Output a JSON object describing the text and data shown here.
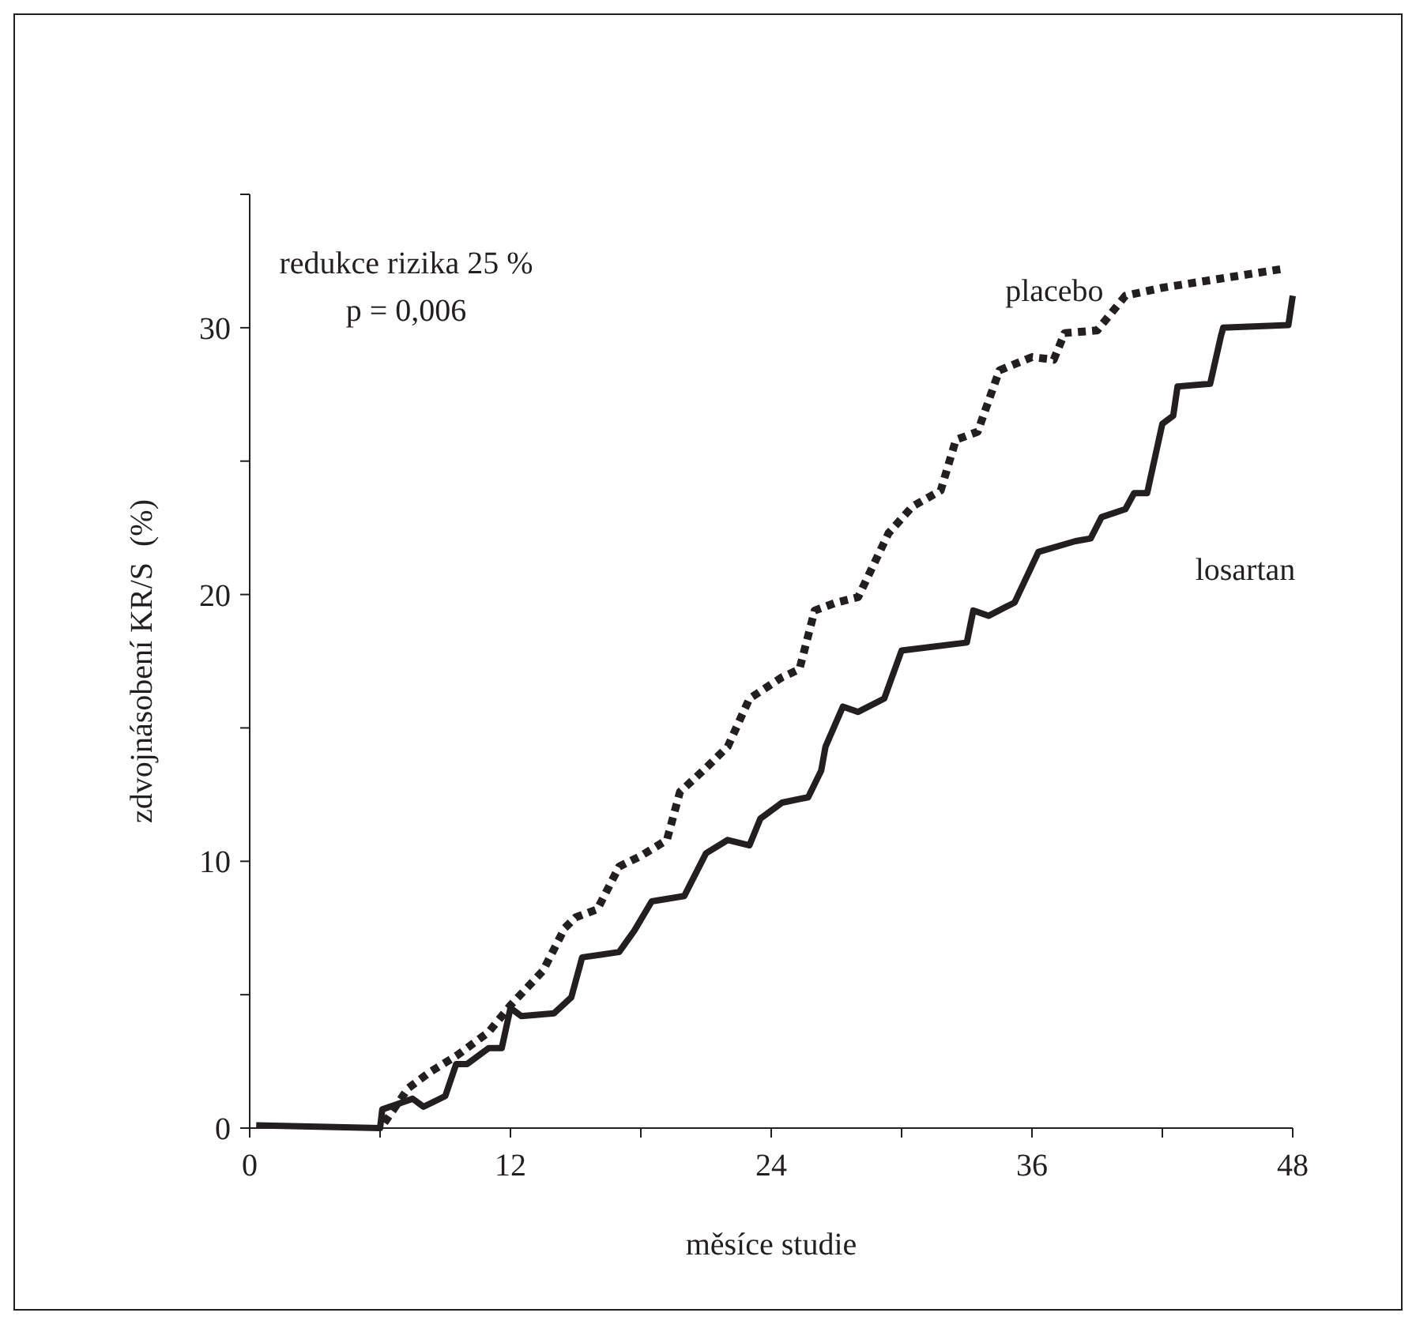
{
  "chart_data": {
    "type": "line",
    "xlabel": "měsíce studie",
    "ylabel": "zdvojnásobení KR/S  (%)",
    "xlim": [
      0,
      48
    ],
    "ylim": [
      0,
      35
    ],
    "xticks": [
      0,
      {
        "value": 6,
        "label": null
      },
      12,
      {
        "value": 18,
        "label": null
      },
      24,
      {
        "value": 30,
        "label": null
      },
      36,
      {
        "value": 42,
        "label": null
      },
      48
    ],
    "yticks": [
      0,
      {
        "value": 5,
        "label": null
      },
      10,
      {
        "value": 15,
        "label": null
      },
      20,
      {
        "value": 25,
        "label": null
      },
      30,
      {
        "value": 35,
        "label": null
      }
    ],
    "grid": false,
    "marker": "none",
    "annotations": [
      "redukce rizika 25 %",
      "p = 0,006"
    ],
    "series": [
      {
        "name": "placebo",
        "color": "#231f20",
        "line_style": "dotted",
        "x": [
          6.2,
          7.3,
          8.3,
          9.5,
          11,
          12,
          13.5,
          14.5,
          15,
          16,
          17,
          18,
          19.2,
          19.8,
          21,
          22,
          23,
          24.5,
          25.3,
          26,
          27,
          28,
          29.4,
          30.5,
          31.8,
          32.5,
          33.5,
          34.5,
          36,
          37,
          37.5,
          39,
          40.3,
          42,
          47.5
        ],
        "values": [
          0.2,
          1.5,
          2.1,
          2.7,
          3.6,
          4.6,
          5.9,
          7.5,
          7.9,
          8.2,
          9.8,
          10.2,
          10.8,
          12.6,
          13.5,
          14.3,
          16.1,
          16.9,
          17.2,
          19.4,
          19.7,
          19.9,
          22.3,
          23.3,
          23.9,
          25.8,
          26.1,
          28.4,
          28.9,
          28.8,
          29.8,
          29.9,
          31.2,
          31.5,
          32.2
        ]
      },
      {
        "name": "losartan",
        "color": "#231f20",
        "line_style": "solid",
        "x": [
          0.3,
          6,
          6.1,
          7.5,
          8,
          9,
          9.5,
          10,
          11,
          11.6,
          12,
          12.5,
          14,
          14.8,
          15.3,
          17,
          17.7,
          18.5,
          20,
          21,
          22,
          23,
          23.5,
          24.5,
          25.7,
          26.3,
          26.5,
          27.3,
          28,
          29.2,
          30,
          33,
          33.3,
          34,
          35.2,
          36.3,
          38,
          38.7,
          39.2,
          40.3,
          40.7,
          41.3,
          42,
          42.5,
          42.7,
          44.2,
          44.7,
          44.8,
          47.8,
          48
        ],
        "values": [
          0.1,
          0,
          0.7,
          1.1,
          0.8,
          1.2,
          2.4,
          2.4,
          3.0,
          3.0,
          4.5,
          4.2,
          4.3,
          4.9,
          6.4,
          6.6,
          7.4,
          8.5,
          8.7,
          10.3,
          10.8,
          10.6,
          11.6,
          12.2,
          12.4,
          13.4,
          14.3,
          15.8,
          15.6,
          16.1,
          17.9,
          18.2,
          19.4,
          19.2,
          19.7,
          21.6,
          22.0,
          22.1,
          22.9,
          23.2,
          23.8,
          23.8,
          26.4,
          26.7,
          27.8,
          27.9,
          29.7,
          30,
          30.1,
          31.2
        ]
      }
    ]
  }
}
